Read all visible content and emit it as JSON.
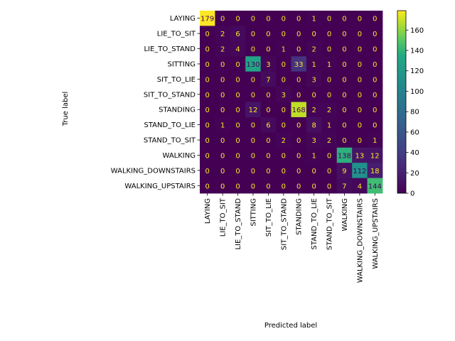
{
  "chart_data": {
    "type": "heatmap",
    "title": "",
    "xlabel": "Predicted label",
    "ylabel": "True label",
    "labels": [
      "LAYING",
      "LIE_TO_SIT",
      "LIE_TO_STAND",
      "SITTING",
      "SIT_TO_LIE",
      "SIT_TO_STAND",
      "STANDING",
      "STAND_TO_LIE",
      "STAND_TO_SIT",
      "WALKING",
      "WALKING_DOWNSTAIRS",
      "WALKING_UPSTAIRS"
    ],
    "matrix": [
      [
        179,
        0,
        0,
        0,
        0,
        0,
        0,
        1,
        0,
        0,
        0,
        0
      ],
      [
        0,
        2,
        6,
        0,
        0,
        0,
        0,
        0,
        0,
        0,
        0,
        0
      ],
      [
        0,
        2,
        4,
        0,
        0,
        1,
        0,
        2,
        0,
        0,
        0,
        0
      ],
      [
        0,
        0,
        0,
        130,
        3,
        0,
        33,
        1,
        1,
        0,
        0,
        0
      ],
      [
        0,
        0,
        0,
        0,
        7,
        0,
        0,
        3,
        0,
        0,
        0,
        0
      ],
      [
        0,
        0,
        0,
        0,
        0,
        3,
        0,
        0,
        0,
        0,
        0,
        0
      ],
      [
        0,
        0,
        0,
        12,
        0,
        0,
        168,
        2,
        2,
        0,
        0,
        0
      ],
      [
        0,
        1,
        0,
        0,
        6,
        0,
        0,
        8,
        1,
        0,
        0,
        0
      ],
      [
        0,
        0,
        0,
        0,
        0,
        2,
        0,
        3,
        2,
        0,
        0,
        1
      ],
      [
        0,
        0,
        0,
        0,
        0,
        0,
        0,
        1,
        0,
        138,
        13,
        12
      ],
      [
        0,
        0,
        0,
        0,
        0,
        0,
        0,
        0,
        0,
        9,
        112,
        18
      ],
      [
        0,
        0,
        0,
        0,
        0,
        0,
        0,
        0,
        0,
        7,
        4,
        144
      ]
    ],
    "colormap": "viridis",
    "vmin": 0,
    "vmax": 179,
    "colorbar_ticks": [
      0,
      20,
      40,
      60,
      80,
      100,
      120,
      140,
      160
    ]
  }
}
